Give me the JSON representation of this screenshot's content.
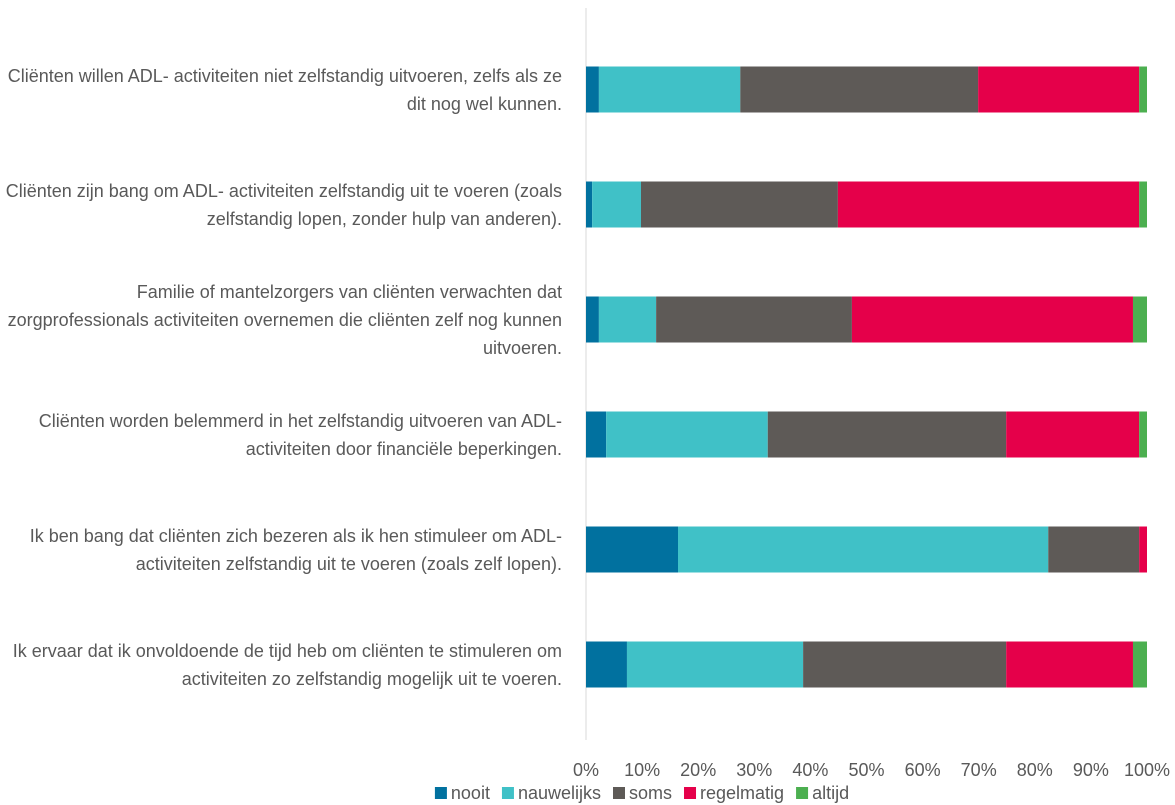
{
  "chart_data": {
    "type": "stacked-bar-horizontal",
    "categories": [
      "Cliënten willen ADL- activiteiten niet zelfstandig uitvoeren, zelfs als ze dit nog wel kunnen.",
      "Cliënten zijn bang om ADL- activiteiten zelfstandig uit te voeren (zoals zelfstandig lopen, zonder hulp van anderen).",
      "Familie of mantelzorgers van cliënten verwachten dat zorgprofessionals activiteiten overnemen die cliënten zelf nog kunnen uitvoeren.",
      "Cliënten worden belemmerd in het zelfstandig uitvoeren van ADL-activiteiten door financiële beperkingen.",
      "Ik ben bang dat cliënten zich bezeren als ik hen stimuleer om ADL- activiteiten zelfstandig uit te voeren (zoals zelf lopen).",
      "Ik ervaar dat ik onvoldoende de tijd heb om cliënten te stimuleren om activiteiten zo zelfstandig mogelijk uit te voeren."
    ],
    "series": [
      {
        "name": "nooit",
        "color": "#01719f",
        "values": [
          2.3,
          1.1,
          2.3,
          3.6,
          16.4,
          7.3
        ]
      },
      {
        "name": "nauwelijks",
        "color": "#40c1c7",
        "values": [
          25.2,
          8.7,
          10.2,
          28.8,
          66.0,
          31.4
        ]
      },
      {
        "name": "soms",
        "color": "#5e5a57",
        "values": [
          42.4,
          35.1,
          34.9,
          42.5,
          16.2,
          36.2
        ]
      },
      {
        "name": "regelmatig",
        "color": "#e5004a",
        "values": [
          28.7,
          53.7,
          50.1,
          23.7,
          1.4,
          22.6
        ]
      },
      {
        "name": "altijd",
        "color": "#4caf50",
        "values": [
          1.4,
          1.4,
          2.5,
          1.4,
          0,
          2.5
        ]
      }
    ],
    "xlim": [
      0,
      100
    ],
    "xticks": [
      {
        "value": 0,
        "label": "0%"
      },
      {
        "value": 10,
        "label": "10%"
      },
      {
        "value": 20,
        "label": "20%"
      },
      {
        "value": 30,
        "label": "30%"
      },
      {
        "value": 40,
        "label": "40%"
      },
      {
        "value": 50,
        "label": "50%"
      },
      {
        "value": 60,
        "label": "60%"
      },
      {
        "value": 70,
        "label": "70%"
      },
      {
        "value": 80,
        "label": "80%"
      },
      {
        "value": 90,
        "label": "90%"
      },
      {
        "value": 100,
        "label": "100%"
      }
    ],
    "legend": "bottom"
  }
}
